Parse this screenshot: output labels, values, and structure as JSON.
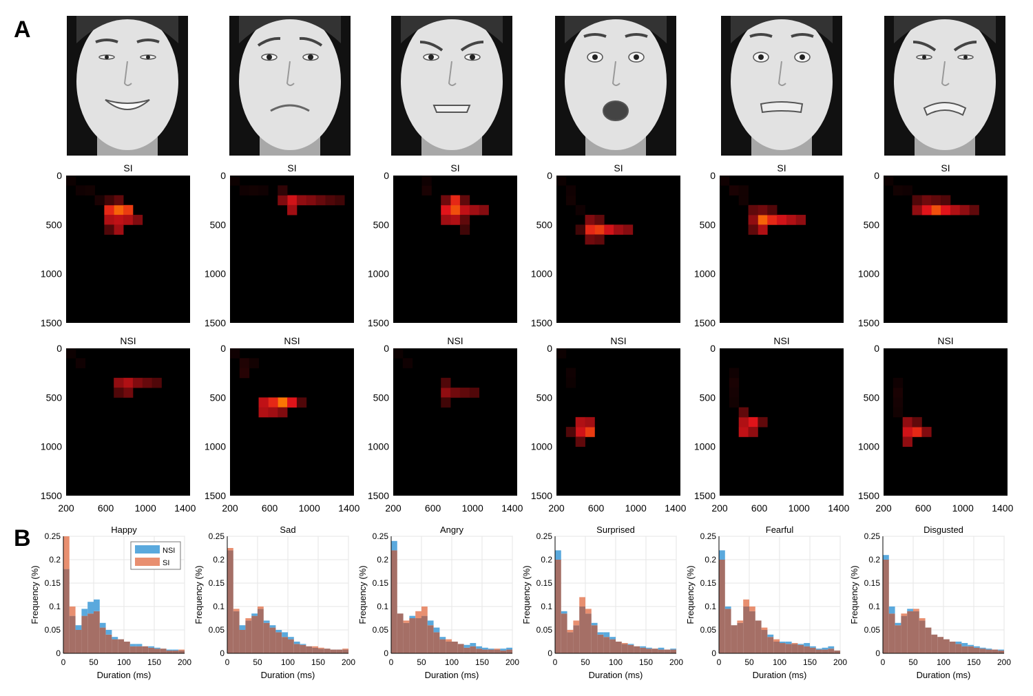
{
  "panel_labels": [
    "A",
    "B"
  ],
  "colors": {
    "heat_low": "#000000",
    "heat_mid": "#e0141a",
    "heat_high": "#ff8a00",
    "nsi": "#5aa9dd",
    "si": "#e88f70",
    "overlap": "#a56f66",
    "grid": "#e6e6e6"
  },
  "faces": [
    {
      "expression": "happy"
    },
    {
      "expression": "sad"
    },
    {
      "expression": "angry"
    },
    {
      "expression": "surprised"
    },
    {
      "expression": "fearful"
    },
    {
      "expression": "disgusted"
    }
  ],
  "chart_data": [
    {
      "type": "heatmap",
      "group": "SI",
      "x_ticks": [
        200,
        600,
        1000,
        1400
      ],
      "y_ticks": [
        0,
        500,
        1000,
        1500
      ],
      "xlim": [
        200,
        1450
      ],
      "ylim": [
        0,
        1500
      ],
      "panels": [
        {
          "title": "SI",
          "cells": [
            [
              3,
              5,
              0.9
            ],
            [
              3,
              4,
              0.75
            ],
            [
              3,
              6,
              0.8
            ],
            [
              4,
              5,
              0.6
            ],
            [
              4,
              4,
              0.55
            ],
            [
              4,
              6,
              0.55
            ],
            [
              5,
              5,
              0.5
            ],
            [
              4,
              7,
              0.4
            ],
            [
              2,
              5,
              0.3
            ],
            [
              2,
              4,
              0.2
            ],
            [
              5,
              4,
              0.25
            ],
            [
              1,
              1,
              0.05
            ],
            [
              1,
              2,
              0.06
            ],
            [
              2,
              3,
              0.08
            ],
            [
              0,
              0,
              0.04
            ]
          ]
        },
        {
          "title": "SI",
          "cells": [
            [
              2,
              6,
              0.65
            ],
            [
              2,
              5,
              0.4
            ],
            [
              3,
              6,
              0.5
            ],
            [
              2,
              7,
              0.45
            ],
            [
              2,
              8,
              0.4
            ],
            [
              2,
              9,
              0.32
            ],
            [
              2,
              10,
              0.25
            ],
            [
              2,
              11,
              0.2
            ],
            [
              1,
              5,
              0.15
            ],
            [
              1,
              1,
              0.05
            ],
            [
              0,
              0,
              0.04
            ],
            [
              1,
              2,
              0.06
            ],
            [
              1,
              3,
              0.05
            ]
          ]
        },
        {
          "title": "SI",
          "cells": [
            [
              3,
              6,
              0.85
            ],
            [
              3,
              5,
              0.7
            ],
            [
              2,
              6,
              0.75
            ],
            [
              3,
              7,
              0.6
            ],
            [
              4,
              6,
              0.55
            ],
            [
              3,
              8,
              0.5
            ],
            [
              3,
              9,
              0.42
            ],
            [
              4,
              5,
              0.5
            ],
            [
              2,
              5,
              0.35
            ],
            [
              2,
              7,
              0.3
            ],
            [
              4,
              7,
              0.3
            ],
            [
              5,
              7,
              0.2
            ],
            [
              1,
              3,
              0.08
            ],
            [
              0,
              3,
              0.05
            ]
          ]
        },
        {
          "title": "SI",
          "cells": [
            [
              5,
              4,
              0.8
            ],
            [
              5,
              3,
              0.75
            ],
            [
              5,
              5,
              0.65
            ],
            [
              5,
              6,
              0.5
            ],
            [
              5,
              7,
              0.42
            ],
            [
              4,
              3,
              0.4
            ],
            [
              6,
              3,
              0.35
            ],
            [
              6,
              4,
              0.3
            ],
            [
              4,
              4,
              0.3
            ],
            [
              5,
              2,
              0.2
            ],
            [
              2,
              1,
              0.06
            ],
            [
              3,
              2,
              0.05
            ],
            [
              1,
              1,
              0.05
            ],
            [
              0,
              0,
              0.04
            ]
          ]
        },
        {
          "title": "SI",
          "cells": [
            [
              4,
              4,
              0.9
            ],
            [
              4,
              5,
              0.75
            ],
            [
              4,
              6,
              0.65
            ],
            [
              4,
              7,
              0.55
            ],
            [
              4,
              8,
              0.45
            ],
            [
              4,
              3,
              0.45
            ],
            [
              5,
              4,
              0.55
            ],
            [
              3,
              4,
              0.35
            ],
            [
              3,
              3,
              0.3
            ],
            [
              5,
              3,
              0.3
            ],
            [
              3,
              5,
              0.25
            ],
            [
              1,
              1,
              0.08
            ],
            [
              1,
              2,
              0.06
            ],
            [
              2,
              2,
              0.06
            ],
            [
              0,
              0,
              0.05
            ]
          ]
        },
        {
          "title": "SI",
          "cells": [
            [
              3,
              5,
              0.85
            ],
            [
              3,
              4,
              0.7
            ],
            [
              3,
              6,
              0.7
            ],
            [
              3,
              7,
              0.55
            ],
            [
              3,
              8,
              0.45
            ],
            [
              3,
              3,
              0.45
            ],
            [
              3,
              9,
              0.3
            ],
            [
              2,
              4,
              0.35
            ],
            [
              2,
              5,
              0.3
            ],
            [
              2,
              6,
              0.25
            ],
            [
              2,
              3,
              0.25
            ],
            [
              1,
              1,
              0.06
            ],
            [
              1,
              2,
              0.05
            ],
            [
              0,
              0,
              0.04
            ]
          ]
        }
      ]
    },
    {
      "type": "heatmap",
      "group": "NSI",
      "x_ticks": [
        200,
        600,
        1000,
        1400
      ],
      "y_ticks": [
        0,
        500,
        1000,
        1500
      ],
      "xlim": [
        200,
        1450
      ],
      "ylim": [
        0,
        1500
      ],
      "panels": [
        {
          "title": "NSI",
          "cells": [
            [
              3,
              6,
              0.55
            ],
            [
              3,
              5,
              0.45
            ],
            [
              3,
              7,
              0.4
            ],
            [
              3,
              8,
              0.32
            ],
            [
              3,
              9,
              0.25
            ],
            [
              4,
              6,
              0.35
            ],
            [
              4,
              5,
              0.25
            ],
            [
              1,
              1,
              0.05
            ],
            [
              0,
              0,
              0.04
            ]
          ]
        },
        {
          "title": "NSI",
          "cells": [
            [
              5,
              5,
              0.95
            ],
            [
              5,
              4,
              0.75
            ],
            [
              5,
              6,
              0.7
            ],
            [
              5,
              3,
              0.6
            ],
            [
              6,
              3,
              0.55
            ],
            [
              6,
              4,
              0.5
            ],
            [
              6,
              5,
              0.4
            ],
            [
              5,
              7,
              0.25
            ],
            [
              1,
              1,
              0.1
            ],
            [
              2,
              1,
              0.12
            ],
            [
              1,
              2,
              0.06
            ],
            [
              0,
              0,
              0.05
            ]
          ]
        },
        {
          "title": "NSI",
          "cells": [
            [
              4,
              5,
              0.45
            ],
            [
              4,
              6,
              0.35
            ],
            [
              4,
              7,
              0.3
            ],
            [
              4,
              8,
              0.25
            ],
            [
              3,
              5,
              0.25
            ],
            [
              5,
              5,
              0.2
            ],
            [
              1,
              1,
              0.05
            ],
            [
              0,
              0,
              0.04
            ]
          ]
        },
        {
          "title": "NSI",
          "cells": [
            [
              8,
              3,
              0.8
            ],
            [
              8,
              2,
              0.65
            ],
            [
              7,
              2,
              0.55
            ],
            [
              7,
              3,
              0.5
            ],
            [
              9,
              2,
              0.3
            ],
            [
              8,
              1,
              0.25
            ],
            [
              2,
              1,
              0.05
            ],
            [
              3,
              1,
              0.04
            ],
            [
              0,
              0,
              0.04
            ]
          ]
        },
        {
          "title": "NSI",
          "cells": [
            [
              7,
              3,
              0.7
            ],
            [
              8,
              2,
              0.6
            ],
            [
              7,
              2,
              0.55
            ],
            [
              8,
              3,
              0.45
            ],
            [
              6,
              2,
              0.3
            ],
            [
              7,
              4,
              0.3
            ],
            [
              3,
              1,
              0.08
            ],
            [
              4,
              1,
              0.07
            ],
            [
              5,
              1,
              0.06
            ],
            [
              2,
              1,
              0.05
            ]
          ]
        },
        {
          "title": "NSI",
          "cells": [
            [
              8,
              3,
              0.75
            ],
            [
              8,
              2,
              0.65
            ],
            [
              7,
              2,
              0.45
            ],
            [
              9,
              2,
              0.45
            ],
            [
              8,
              4,
              0.4
            ],
            [
              7,
              3,
              0.3
            ],
            [
              4,
              1,
              0.08
            ],
            [
              5,
              1,
              0.07
            ],
            [
              6,
              1,
              0.06
            ],
            [
              3,
              1,
              0.05
            ]
          ]
        }
      ]
    },
    {
      "type": "histogram",
      "xlabel": "Duration (ms)",
      "ylabel": "Frequency (%)",
      "x_ticks": [
        0,
        50,
        100,
        150,
        200
      ],
      "y_ticks": [
        0,
        0.05,
        0.1,
        0.15,
        0.2,
        0.25
      ],
      "xlim": [
        0,
        200
      ],
      "ylim": [
        0,
        0.25
      ],
      "bin_width": 10,
      "legend": [
        "NSI",
        "SI"
      ],
      "legend_position": "top-right (Happy panel only)",
      "panels": [
        {
          "title": "Happy",
          "NSI": [
            0.18,
            0.08,
            0.06,
            0.095,
            0.11,
            0.115,
            0.065,
            0.05,
            0.035,
            0.03,
            0.025,
            0.02,
            0.02,
            0.015,
            0.015,
            0.012,
            0.01,
            0.008,
            0.008,
            0.006
          ],
          "SI": [
            0.25,
            0.1,
            0.05,
            0.08,
            0.085,
            0.09,
            0.055,
            0.04,
            0.03,
            0.03,
            0.025,
            0.015,
            0.015,
            0.015,
            0.012,
            0.01,
            0.01,
            0.006,
            0.006,
            0.008
          ]
        },
        {
          "title": "Sad",
          "NSI": [
            0.22,
            0.09,
            0.06,
            0.07,
            0.085,
            0.095,
            0.07,
            0.06,
            0.05,
            0.045,
            0.035,
            0.025,
            0.02,
            0.015,
            0.012,
            0.01,
            0.01,
            0.008,
            0.008,
            0.008
          ],
          "SI": [
            0.225,
            0.095,
            0.05,
            0.075,
            0.08,
            0.1,
            0.065,
            0.055,
            0.045,
            0.035,
            0.03,
            0.02,
            0.018,
            0.015,
            0.015,
            0.012,
            0.01,
            0.008,
            0.008,
            0.01
          ]
        },
        {
          "title": "Angry",
          "NSI": [
            0.24,
            0.085,
            0.065,
            0.08,
            0.075,
            0.08,
            0.07,
            0.055,
            0.035,
            0.025,
            0.025,
            0.02,
            0.018,
            0.022,
            0.015,
            0.012,
            0.01,
            0.008,
            0.01,
            0.012
          ],
          "SI": [
            0.22,
            0.085,
            0.07,
            0.075,
            0.09,
            0.1,
            0.06,
            0.045,
            0.03,
            0.03,
            0.025,
            0.02,
            0.012,
            0.015,
            0.01,
            0.008,
            0.008,
            0.01,
            0.006,
            0.008
          ]
        },
        {
          "title": "Surprised",
          "NSI": [
            0.22,
            0.09,
            0.045,
            0.06,
            0.1,
            0.085,
            0.065,
            0.045,
            0.045,
            0.035,
            0.025,
            0.02,
            0.02,
            0.015,
            0.015,
            0.012,
            0.01,
            0.012,
            0.008,
            0.01
          ],
          "SI": [
            0.2,
            0.085,
            0.05,
            0.07,
            0.12,
            0.095,
            0.06,
            0.04,
            0.035,
            0.03,
            0.025,
            0.022,
            0.018,
            0.015,
            0.012,
            0.01,
            0.01,
            0.008,
            0.008,
            0.008
          ]
        },
        {
          "title": "Fearful",
          "NSI": [
            0.22,
            0.1,
            0.06,
            0.065,
            0.1,
            0.09,
            0.07,
            0.05,
            0.04,
            0.025,
            0.025,
            0.025,
            0.02,
            0.02,
            0.022,
            0.015,
            0.01,
            0.012,
            0.015,
            0.006
          ],
          "SI": [
            0.2,
            0.095,
            0.06,
            0.07,
            0.115,
            0.1,
            0.07,
            0.055,
            0.035,
            0.03,
            0.022,
            0.02,
            0.022,
            0.018,
            0.015,
            0.012,
            0.008,
            0.008,
            0.01,
            0.006
          ]
        },
        {
          "title": "Disgusted",
          "NSI": [
            0.21,
            0.1,
            0.065,
            0.08,
            0.095,
            0.09,
            0.07,
            0.055,
            0.04,
            0.035,
            0.03,
            0.025,
            0.025,
            0.022,
            0.018,
            0.015,
            0.012,
            0.01,
            0.008,
            0.008
          ],
          "SI": [
            0.2,
            0.085,
            0.06,
            0.085,
            0.09,
            0.095,
            0.075,
            0.055,
            0.04,
            0.035,
            0.03,
            0.025,
            0.02,
            0.015,
            0.015,
            0.012,
            0.01,
            0.008,
            0.008,
            0.006
          ]
        }
      ]
    }
  ]
}
